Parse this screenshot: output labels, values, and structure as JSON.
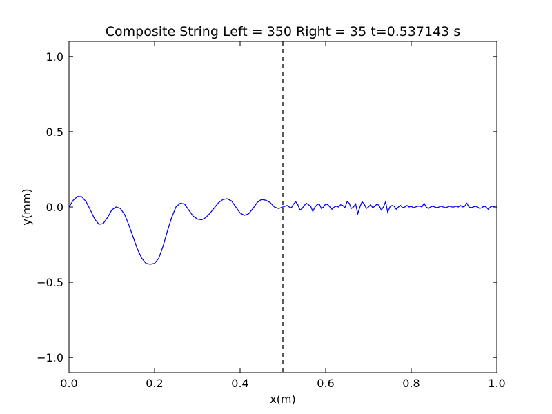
{
  "chart_data": {
    "type": "line",
    "title": "Composite String Left = 350 Right = 35  t=0.537143 s",
    "xlabel": "x(m)",
    "ylabel": "y(mm)",
    "xlim": [
      0.0,
      1.0
    ],
    "ylim": [
      -1.1,
      1.1
    ],
    "xticks": [
      0.0,
      0.2,
      0.4,
      0.6,
      0.8,
      1.0
    ],
    "xtick_labels": [
      "0.0",
      "0.2",
      "0.4",
      "0.6",
      "0.8",
      "1.0"
    ],
    "yticks": [
      -1.0,
      -0.5,
      0.0,
      0.5,
      1.0
    ],
    "ytick_labels": [
      "−1.0",
      "−0.5",
      "0.0",
      "0.5",
      "1.0"
    ],
    "grid": false,
    "line_color": "#0000ff",
    "boundary": {
      "x": 0.5,
      "style": "dashed",
      "color": "#000000"
    },
    "series": [
      {
        "x": [
          0.0,
          0.01,
          0.02,
          0.03,
          0.04,
          0.05,
          0.06,
          0.07,
          0.08,
          0.09,
          0.1,
          0.11,
          0.12,
          0.13,
          0.14,
          0.15,
          0.16,
          0.17,
          0.18,
          0.19,
          0.2,
          0.21,
          0.22,
          0.23,
          0.24,
          0.25,
          0.26,
          0.27,
          0.28,
          0.29,
          0.3,
          0.31,
          0.32,
          0.33,
          0.34,
          0.35,
          0.36,
          0.37,
          0.38,
          0.39,
          0.4,
          0.41,
          0.42,
          0.43,
          0.44,
          0.45,
          0.46,
          0.47,
          0.48,
          0.49,
          0.5,
          0.505,
          0.51,
          0.515,
          0.52,
          0.525,
          0.53,
          0.535,
          0.54,
          0.545,
          0.55,
          0.555,
          0.56,
          0.565,
          0.57,
          0.575,
          0.58,
          0.585,
          0.59,
          0.595,
          0.6,
          0.605,
          0.61,
          0.615,
          0.62,
          0.625,
          0.63,
          0.635,
          0.64,
          0.645,
          0.65,
          0.655,
          0.66,
          0.665,
          0.67,
          0.675,
          0.68,
          0.685,
          0.69,
          0.695,
          0.7,
          0.705,
          0.71,
          0.715,
          0.72,
          0.725,
          0.73,
          0.735,
          0.74,
          0.745,
          0.75,
          0.755,
          0.76,
          0.765,
          0.77,
          0.775,
          0.78,
          0.785,
          0.79,
          0.795,
          0.8,
          0.805,
          0.81,
          0.815,
          0.82,
          0.825,
          0.83,
          0.835,
          0.84,
          0.845,
          0.85,
          0.855,
          0.86,
          0.865,
          0.87,
          0.875,
          0.88,
          0.885,
          0.89,
          0.895,
          0.9,
          0.905,
          0.91,
          0.915,
          0.92,
          0.925,
          0.93,
          0.935,
          0.94,
          0.945,
          0.95,
          0.955,
          0.96,
          0.965,
          0.97,
          0.975,
          0.98,
          0.985,
          0.99,
          0.995,
          1.0
        ],
        "y": [
          0.0,
          0.045,
          0.07,
          0.068,
          0.035,
          -0.02,
          -0.08,
          -0.115,
          -0.11,
          -0.07,
          -0.02,
          0.0,
          -0.01,
          -0.05,
          -0.12,
          -0.2,
          -0.28,
          -0.34,
          -0.375,
          -0.38,
          -0.375,
          -0.34,
          -0.26,
          -0.16,
          -0.07,
          0.0,
          0.025,
          0.02,
          -0.02,
          -0.06,
          -0.08,
          -0.085,
          -0.07,
          -0.04,
          -0.005,
          0.03,
          0.05,
          0.055,
          0.04,
          0.0,
          -0.04,
          -0.055,
          -0.045,
          -0.01,
          0.03,
          0.05,
          0.045,
          0.03,
          0.0,
          -0.01,
          0.0,
          0.005,
          0.01,
          0.0,
          -0.005,
          0.02,
          0.035,
          0.015,
          -0.02,
          -0.01,
          0.01,
          0.025,
          0.015,
          0.005,
          -0.03,
          0.0,
          0.015,
          0.02,
          -0.01,
          0.0,
          0.02,
          0.015,
          0.0,
          -0.015,
          0.0,
          0.005,
          0.0,
          0.015,
          0.01,
          -0.005,
          0.035,
          0.025,
          -0.01,
          0.0,
          0.02,
          -0.045,
          0.0,
          0.035,
          0.02,
          -0.01,
          0.0,
          0.015,
          -0.005,
          0.005,
          0.02,
          0.01,
          -0.02,
          0.0,
          0.035,
          -0.035,
          0.0,
          0.01,
          0.005,
          -0.015,
          0.0,
          0.01,
          -0.005,
          0.0,
          0.01,
          0.0,
          0.005,
          -0.005,
          0.0,
          0.005,
          0.005,
          0.0,
          0.025,
          0.0,
          -0.01,
          0.0,
          0.005,
          0.0,
          -0.005,
          0.0,
          0.005,
          0.0,
          -0.005,
          0.0,
          0.005,
          0.0,
          0.0,
          0.005,
          0.0,
          0.01,
          0.0,
          0.005,
          0.025,
          0.0,
          -0.005,
          0.0,
          0.005,
          0.0,
          -0.01,
          -0.005,
          0.005,
          0.0,
          -0.015,
          0.0,
          0.005,
          0.0,
          0.0
        ]
      }
    ]
  }
}
